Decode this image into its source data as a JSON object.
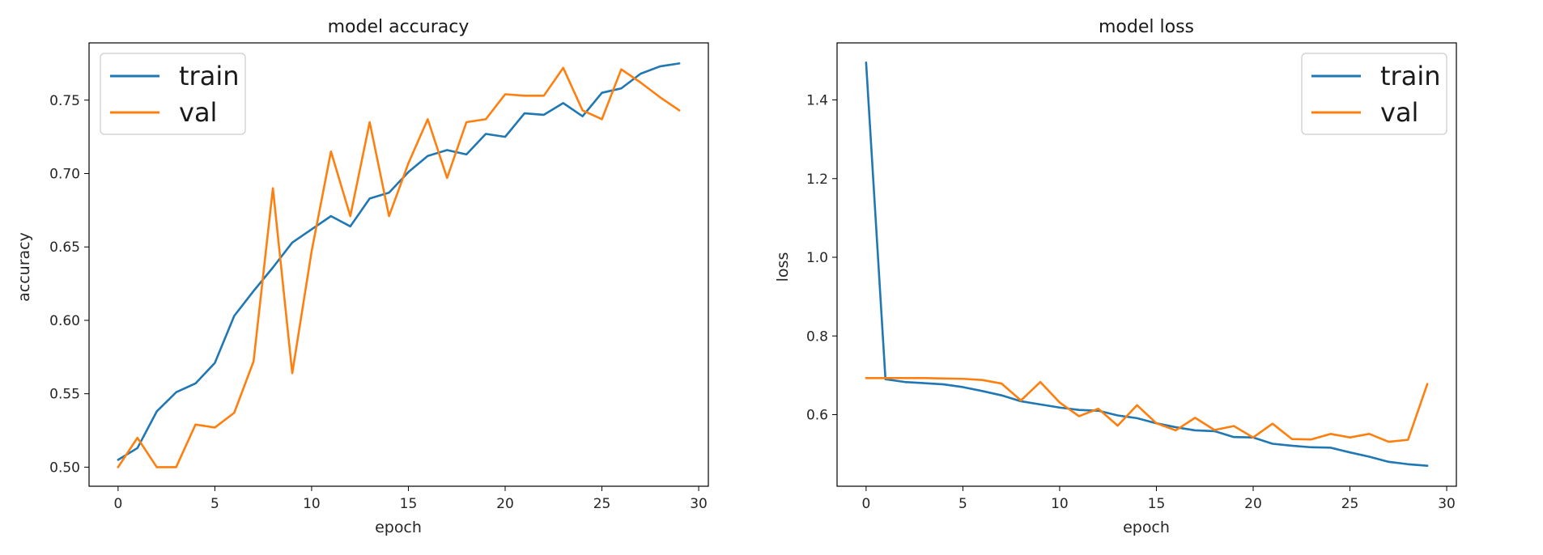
{
  "chart_data": [
    {
      "type": "line",
      "title": "model accuracy",
      "xlabel": "epoch",
      "ylabel": "accuracy",
      "xlim": [
        -1.5,
        30.5
      ],
      "ylim": [
        0.487,
        0.789
      ],
      "xticks": [
        0,
        5,
        10,
        15,
        20,
        25,
        30
      ],
      "yticks": [
        0.5,
        0.55,
        0.6,
        0.65,
        0.7,
        0.75
      ],
      "ytick_decimals": 2,
      "legend_position": "upper-left",
      "grid": false,
      "x": [
        0,
        1,
        2,
        3,
        4,
        5,
        6,
        7,
        8,
        9,
        10,
        11,
        12,
        13,
        14,
        15,
        16,
        17,
        18,
        19,
        20,
        21,
        22,
        23,
        24,
        25,
        26,
        27,
        28,
        29
      ],
      "series": [
        {
          "name": "train",
          "color": "#1f77b4",
          "values": [
            0.505,
            0.513,
            0.538,
            0.551,
            0.557,
            0.571,
            0.603,
            0.62,
            0.636,
            0.653,
            0.662,
            0.671,
            0.664,
            0.683,
            0.687,
            0.701,
            0.712,
            0.716,
            0.713,
            0.727,
            0.725,
            0.741,
            0.74,
            0.748,
            0.739,
            0.755,
            0.758,
            0.768,
            0.773,
            0.775
          ]
        },
        {
          "name": "val",
          "color": "#ff7f0e",
          "values": [
            0.5,
            0.52,
            0.5,
            0.5,
            0.529,
            0.527,
            0.537,
            0.572,
            0.69,
            0.564,
            0.647,
            0.715,
            0.671,
            0.735,
            0.671,
            0.707,
            0.737,
            0.697,
            0.735,
            0.737,
            0.754,
            0.753,
            0.753,
            0.772,
            0.743,
            0.737,
            0.771,
            0.762,
            0.752,
            0.743
          ]
        }
      ]
    },
    {
      "type": "line",
      "title": "model loss",
      "xlabel": "epoch",
      "ylabel": "loss",
      "xlim": [
        -1.5,
        30.5
      ],
      "ylim": [
        0.418,
        1.545
      ],
      "xticks": [
        0,
        5,
        10,
        15,
        20,
        25,
        30
      ],
      "yticks": [
        0.6,
        0.8,
        1.0,
        1.2,
        1.4
      ],
      "ytick_decimals": 1,
      "legend_position": "upper-right",
      "grid": false,
      "x": [
        0,
        1,
        2,
        3,
        4,
        5,
        6,
        7,
        8,
        9,
        10,
        11,
        12,
        13,
        14,
        15,
        16,
        17,
        18,
        19,
        20,
        21,
        22,
        23,
        24,
        25,
        26,
        27,
        28,
        29
      ],
      "series": [
        {
          "name": "train",
          "color": "#1f77b4",
          "values": [
            1.495,
            0.69,
            0.683,
            0.68,
            0.677,
            0.67,
            0.66,
            0.649,
            0.634,
            0.626,
            0.618,
            0.612,
            0.61,
            0.598,
            0.591,
            0.578,
            0.568,
            0.56,
            0.558,
            0.543,
            0.542,
            0.526,
            0.521,
            0.517,
            0.516,
            0.504,
            0.493,
            0.48,
            0.474,
            0.47
          ]
        },
        {
          "name": "val",
          "color": "#ff7f0e",
          "values": [
            0.693,
            0.693,
            0.693,
            0.693,
            0.692,
            0.691,
            0.688,
            0.679,
            0.636,
            0.683,
            0.631,
            0.596,
            0.615,
            0.572,
            0.624,
            0.578,
            0.56,
            0.592,
            0.561,
            0.571,
            0.542,
            0.577,
            0.538,
            0.537,
            0.551,
            0.542,
            0.551,
            0.531,
            0.536,
            0.678
          ]
        }
      ]
    }
  ]
}
